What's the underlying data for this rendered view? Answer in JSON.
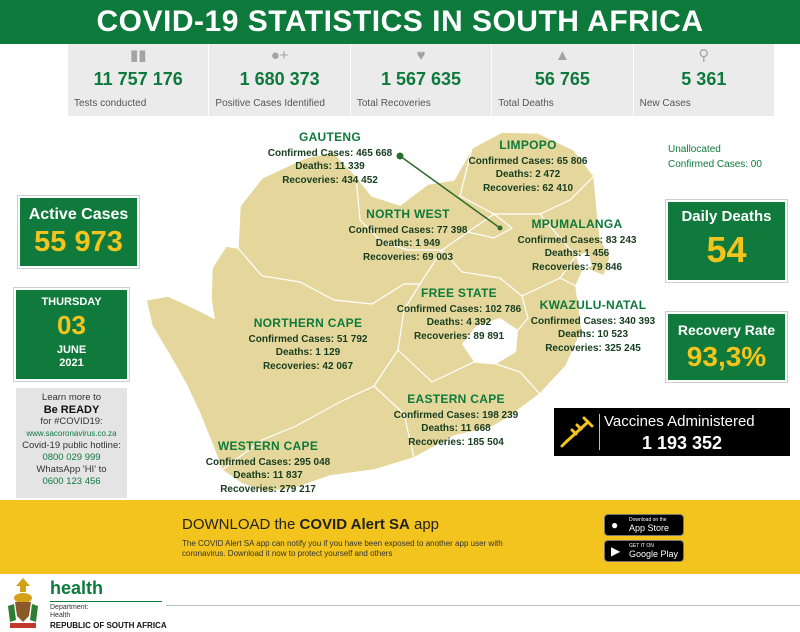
{
  "header": {
    "title": "COVID-19 STATISTICS IN SOUTH AFRICA"
  },
  "stats": [
    {
      "icon": "test-tube-icon",
      "value": "11 757 176",
      "label": "Tests conducted"
    },
    {
      "icon": "add-person-icon",
      "value": "1  680 373",
      "label": "Positive Cases Identified"
    },
    {
      "icon": "heartbeat-icon",
      "value": "1 567 635",
      "label": "Total Recoveries"
    },
    {
      "icon": "praying-hands-icon",
      "value": "56 765",
      "label": "Total Deaths"
    },
    {
      "icon": "magnifier-icon",
      "value": "5 361",
      "label": "New Cases"
    }
  ],
  "regions": {
    "gauteng": {
      "name": "GAUTENG",
      "cases": "Confirmed Cases: 465 668",
      "deaths": "Deaths: 11 339",
      "recoveries": "Recoveries: 434 452"
    },
    "limpopo": {
      "name": "LIMPOPO",
      "cases": "Confirmed Cases: 65 806",
      "deaths": "Deaths: 2 472",
      "recoveries": "Recoveries: 62 410"
    },
    "north_west": {
      "name": "NORTH WEST",
      "cases": "Confirmed Cases: 77 398",
      "deaths": "Deaths: 1 949",
      "recoveries": "Recoveries: 69 003"
    },
    "mpumalanga": {
      "name": "MPUMALANGA",
      "cases": "Confirmed Cases: 83 243",
      "deaths": "Deaths:  1 456",
      "recoveries": "Recoveries: 79 846"
    },
    "free_state": {
      "name": "FREE STATE",
      "cases": "Confirmed Cases: 102 786",
      "deaths": "Deaths: 4 392",
      "recoveries": "Recoveries:  89 891"
    },
    "kwazulu_natal": {
      "name": "KWAZULU-NATAL",
      "cases": "Confirmed Cases: 340 393",
      "deaths": "Deaths: 10 523",
      "recoveries": "Recoveries: 325 245"
    },
    "northern_cape": {
      "name": "NORTHERN CAPE",
      "cases": "Confirmed Cases: 51 792",
      "deaths": "Deaths: 1 129",
      "recoveries": "Recoveries: 42 067"
    },
    "eastern_cape": {
      "name": "EASTERN CAPE",
      "cases": "Confirmed Cases: 198 239",
      "deaths": "Deaths: 11 668",
      "recoveries": "Recoveries: 185 504"
    },
    "western_cape": {
      "name": "WESTERN CAPE",
      "cases": "Confirmed Cases: 295 048",
      "deaths": "Deaths: 11 837",
      "recoveries": "Recoveries: 279 217"
    }
  },
  "unallocated": {
    "line1": "Unallocated",
    "line2": "Confirmed Cases: 00"
  },
  "active_cases": {
    "label": "Active Cases",
    "value": "55 973"
  },
  "date": {
    "weekday": "THURSDAY",
    "day": "03",
    "month": "JUNE",
    "year": "2021"
  },
  "daily_deaths": {
    "label": "Daily Deaths",
    "value": "54"
  },
  "recovery_rate": {
    "label": "Recovery Rate",
    "value": "93,3%"
  },
  "info": {
    "line1": "Learn more to",
    "line2": "Be READY",
    "line3": "for #COVID19:",
    "link": "www.sacoronavirus.co.za",
    "hotline_label": "Covid-19 public hotline:",
    "hotline": "0800 029 999",
    "whatsapp_label": "WhatsApp 'HI' to",
    "whatsapp": "0600 123 456"
  },
  "vaccines": {
    "label": "Vaccines Administered",
    "value": "1 193 352",
    "icon": "syringe-icon"
  },
  "app": {
    "title_prefix": "DOWNLOAD the ",
    "title_bold": "COVID Alert SA",
    "title_suffix": " app",
    "description": "The COVID Alert SA app can notify you if you have been exposed to another app user with coronavirus. Download it now to protect yourself and others",
    "appstore_small": "Download on the",
    "appstore_big": "App Store",
    "gplay_small": "GET IT ON",
    "gplay_big": "Google Play"
  },
  "footer": {
    "health": "health",
    "dept1": "Department:",
    "dept2": "Health",
    "country": "REPUBLIC OF SOUTH AFRICA"
  },
  "colors": {
    "green": "#0d7a3b",
    "gold": "#f3c41e",
    "map": "#e5d79c"
  }
}
